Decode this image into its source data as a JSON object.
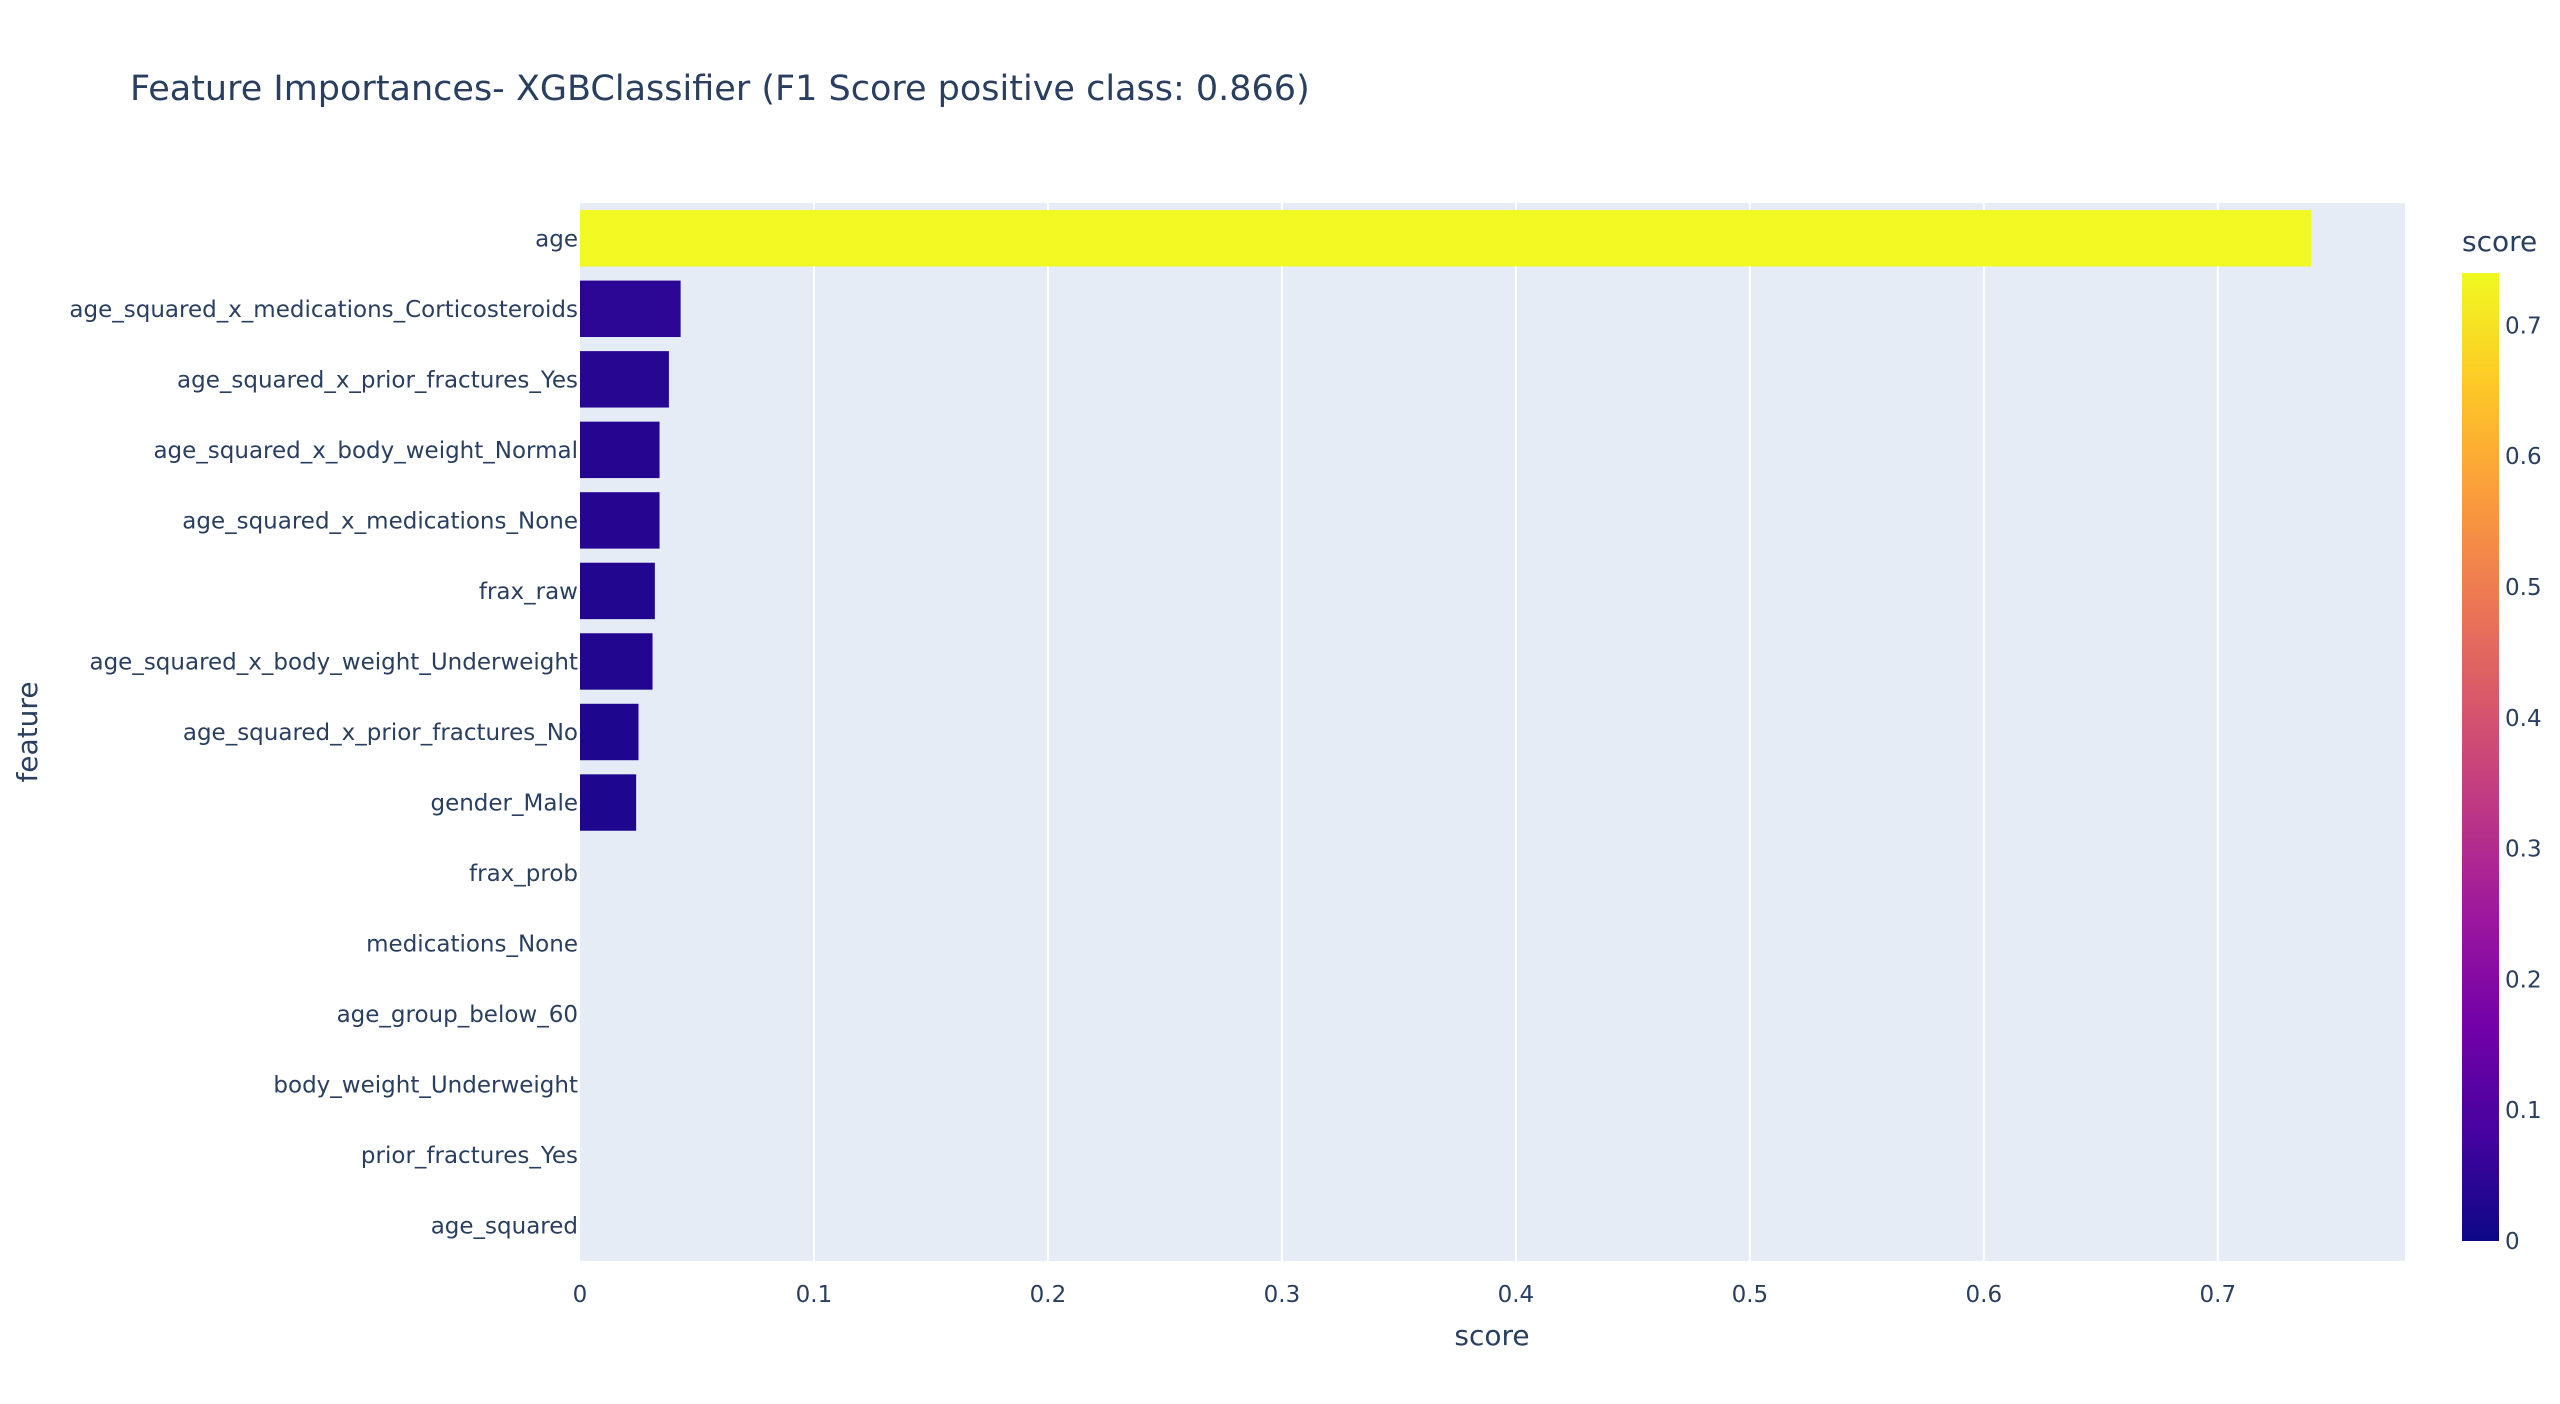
{
  "chart_data": {
    "type": "bar",
    "orientation": "horizontal",
    "title": "Feature Importances- XGBClassifier (F1 Score positive class: 0.866)",
    "xlabel": "score",
    "ylabel": "feature",
    "xlim": [
      0,
      0.78
    ],
    "x_ticks": [
      0,
      0.1,
      0.2,
      0.3,
      0.4,
      0.5,
      0.6,
      0.7
    ],
    "x_tick_labels": [
      "0",
      "0.1",
      "0.2",
      "0.3",
      "0.4",
      "0.5",
      "0.6",
      "0.7"
    ],
    "grid": true,
    "categories": [
      "age",
      "age_squared_x_medications_Corticosteroids",
      "age_squared_x_prior_fractures_Yes",
      "age_squared_x_body_weight_Normal",
      "age_squared_x_medications_None",
      "frax_raw",
      "age_squared_x_body_weight_Underweight",
      "age_squared_x_prior_fractures_No",
      "gender_Male",
      "frax_prob",
      "medications_None",
      "age_group_below_60",
      "body_weight_Underweight",
      "prior_fractures_Yes",
      "age_squared"
    ],
    "values": [
      0.74,
      0.043,
      0.038,
      0.034,
      0.034,
      0.032,
      0.031,
      0.025,
      0.024,
      0,
      0,
      0,
      0,
      0,
      0
    ],
    "colorbar": {
      "title": "score",
      "range": [
        0,
        0.74
      ],
      "ticks": [
        0,
        0.1,
        0.2,
        0.3,
        0.4,
        0.5,
        0.6,
        0.7
      ],
      "tick_labels": [
        "0",
        "0.1",
        "0.2",
        "0.3",
        "0.4",
        "0.5",
        "0.6",
        "0.7"
      ],
      "colorscale": [
        "#0d0887",
        "#46039f",
        "#7201a8",
        "#9c179e",
        "#bd3786",
        "#d8576b",
        "#ed7953",
        "#fb9f3a",
        "#fdca26",
        "#f0f921"
      ]
    },
    "colors": {
      "plot_background": "#e5ecf6",
      "grid": "#ffffff",
      "text": "#2a3f5f"
    }
  }
}
